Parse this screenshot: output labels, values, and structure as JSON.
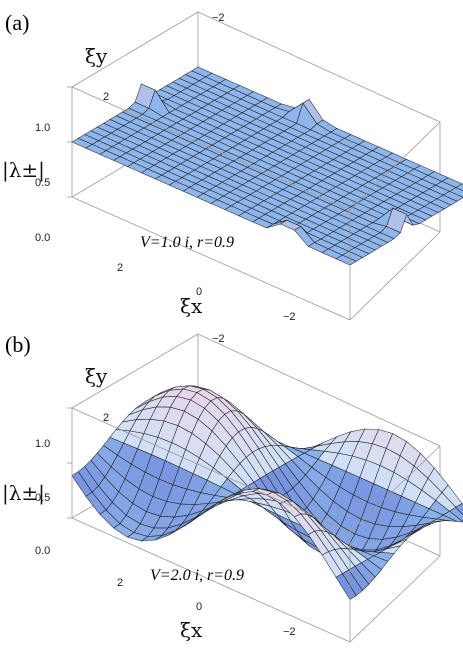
{
  "chart_data": [
    {
      "panel_label": "(a)",
      "type": "surface3d",
      "annotation": "V=1.0 i,  r=0.9",
      "zlabel": "|λ±|",
      "xlabel": "ξx",
      "ylabel": "ξy",
      "x_ticks": [
        "2",
        "0",
        "−2"
      ],
      "y_ticks": [
        "−2",
        "2"
      ],
      "z_ticks": [
        "1.0",
        "0.5",
        "0.0"
      ],
      "xlim": [
        -3.1416,
        3.1416
      ],
      "ylim": [
        -3.1416,
        3.1416
      ],
      "zlim": [
        0,
        1.0
      ],
      "surface": "flat plane |λ±| ≈ 0.5 with small peaks near the corners/edges",
      "base_level": 0.5,
      "peak_level": 0.75
    },
    {
      "panel_label": "(b)",
      "type": "surface3d",
      "annotation": "V=2.0 i,  r=0.9",
      "zlabel": "|λ±|",
      "xlabel": "ξx",
      "ylabel": "ξy",
      "x_ticks": [
        "2",
        "0",
        "−2"
      ],
      "y_ticks": [
        "−2",
        "2"
      ],
      "z_ticks": [
        "1.0",
        "0.5",
        "0.0"
      ],
      "xlim": [
        -3.1416,
        3.1416
      ],
      "ylim": [
        -3.1416,
        3.1416
      ],
      "zlim": [
        0,
        1.0
      ],
      "surface": "egg-crate ridges reaching |λ±| ≈ 1.0 with minima near 0.0",
      "base_level": 0.5,
      "peak_level": 1.0
    }
  ],
  "colors": {
    "surface_light": "#cfe0f7",
    "surface_mid": "#8fb6ec",
    "surface_dark": "#6a7fd8",
    "surface_pink": "#f0d3e6",
    "mesh": "#1a1a1a"
  }
}
